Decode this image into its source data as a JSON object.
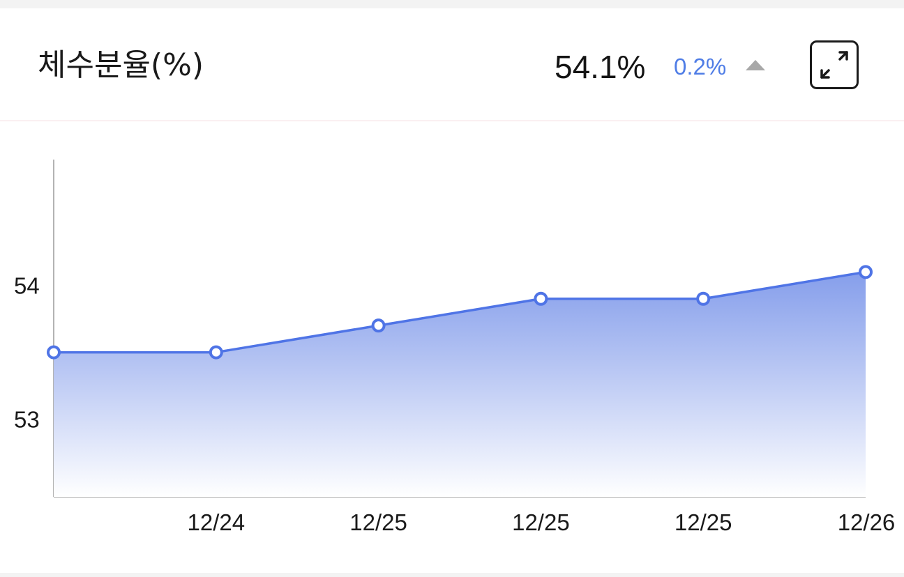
{
  "header": {
    "title": "체수분율(%)",
    "current_value": "54.1%",
    "delta": "0.2%",
    "delta_direction": "up",
    "expand_icon": "expand-arrows-icon"
  },
  "colors": {
    "accent": "#4f7de6",
    "line": "#4f74e6",
    "area_top": "#7f99ea",
    "area_bottom": "#ffffff",
    "arrow": "#a8a8a8"
  },
  "chart_data": {
    "type": "area",
    "categories": [
      "",
      "12/24",
      "12/25",
      "12/25",
      "12/25",
      "12/26"
    ],
    "values": [
      53.5,
      53.5,
      53.7,
      53.9,
      53.9,
      54.1
    ],
    "ylim": [
      52.42,
      54.94
    ],
    "yticks": [
      53,
      54
    ],
    "title": "",
    "xlabel": "",
    "ylabel": "",
    "grid": false,
    "markers": "hollow-circle"
  }
}
